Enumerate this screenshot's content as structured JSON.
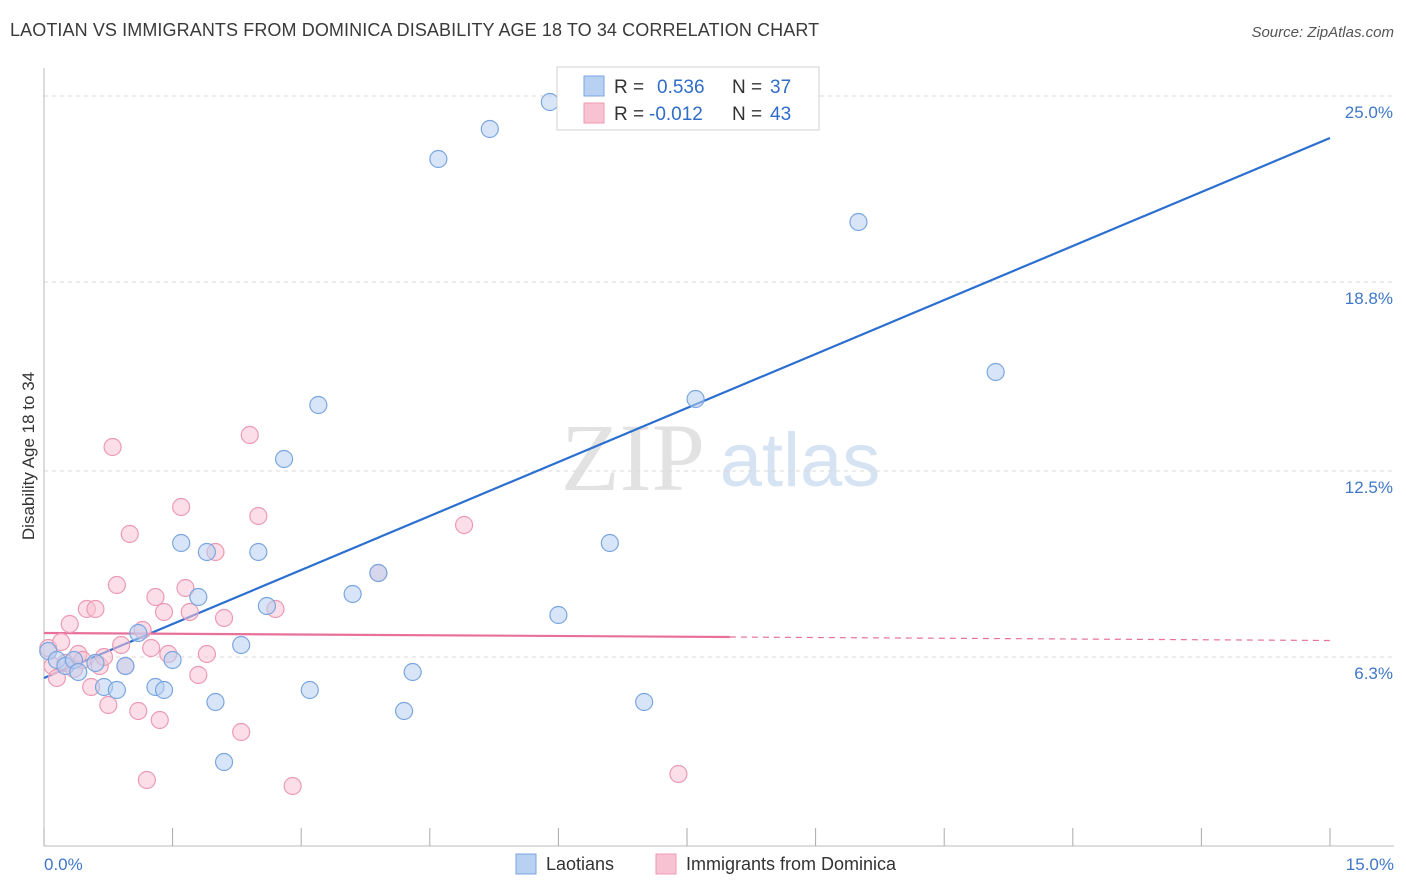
{
  "header": {
    "title": "LAOTIAN VS IMMIGRANTS FROM DOMINICA DISABILITY AGE 18 TO 34 CORRELATION CHART",
    "source": "Source: ZipAtlas.com"
  },
  "watermark": {
    "zip": "ZIP",
    "atlas": "atlas"
  },
  "legend": {
    "rows": [
      {
        "r_label": "R =",
        "r_value": "0.536",
        "n_label": "N =",
        "n_value": "37"
      },
      {
        "r_label": "R =",
        "r_value": "-0.012",
        "n_label": "N =",
        "n_value": "43"
      }
    ]
  },
  "bottom_legend": {
    "series1": "Laotians",
    "series2": "Immigrants from Dominica"
  },
  "colors": {
    "blue_fill": "#b8d0f2",
    "blue_stroke": "#7aa6e0",
    "blue_line": "#2b6fd0",
    "pink_fill": "#f7c3d3",
    "pink_stroke": "#ec9ab3",
    "pink_line": "#e8709a",
    "tick_text": "#3f77c7",
    "grid": "#d9d9d9"
  },
  "chart_data": {
    "type": "scatter",
    "title": "LAOTIAN VS IMMIGRANTS FROM DOMINICA DISABILITY AGE 18 TO 34 CORRELATION CHART",
    "xlabel": "",
    "ylabel": "Disability Age 18 to 34",
    "xlim": [
      0,
      15
    ],
    "ylim": [
      0,
      25.8
    ],
    "x_tick_labels": [
      "0.0%",
      "15.0%"
    ],
    "y_ticks": [
      6.3,
      12.5,
      18.8,
      25.0
    ],
    "y_tick_labels": [
      "6.3%",
      "12.5%",
      "18.8%",
      "25.0%"
    ],
    "grid": true,
    "series": [
      {
        "name": "Laotians",
        "r": 0.536,
        "n": 37,
        "points": [
          [
            0.05,
            6.5
          ],
          [
            0.15,
            6.2
          ],
          [
            0.25,
            6.0
          ],
          [
            0.35,
            6.2
          ],
          [
            0.4,
            5.8
          ],
          [
            0.6,
            6.1
          ],
          [
            0.7,
            5.3
          ],
          [
            0.85,
            5.2
          ],
          [
            0.95,
            6.0
          ],
          [
            1.1,
            7.1
          ],
          [
            1.3,
            5.3
          ],
          [
            1.4,
            5.2
          ],
          [
            1.5,
            6.2
          ],
          [
            1.6,
            10.1
          ],
          [
            1.8,
            8.3
          ],
          [
            1.9,
            9.8
          ],
          [
            2.0,
            4.8
          ],
          [
            2.1,
            2.8
          ],
          [
            2.3,
            6.7
          ],
          [
            2.5,
            9.8
          ],
          [
            2.6,
            8.0
          ],
          [
            2.8,
            12.9
          ],
          [
            3.1,
            5.2
          ],
          [
            3.2,
            14.7
          ],
          [
            3.6,
            8.4
          ],
          [
            3.9,
            9.1
          ],
          [
            4.2,
            4.5
          ],
          [
            4.3,
            5.8
          ],
          [
            4.6,
            22.9
          ],
          [
            5.2,
            23.9
          ],
          [
            5.9,
            24.8
          ],
          [
            6.0,
            7.7
          ],
          [
            6.6,
            10.1
          ],
          [
            7.0,
            4.8
          ],
          [
            7.6,
            14.9
          ],
          [
            9.5,
            20.8
          ],
          [
            11.1,
            15.8
          ]
        ],
        "trend": {
          "x": [
            0,
            15
          ],
          "y": [
            5.6,
            23.6
          ]
        }
      },
      {
        "name": "Immigrants from Dominica",
        "r": -0.012,
        "n": 43,
        "points": [
          [
            0.05,
            6.6
          ],
          [
            0.1,
            6.0
          ],
          [
            0.15,
            5.6
          ],
          [
            0.2,
            6.8
          ],
          [
            0.25,
            6.1
          ],
          [
            0.3,
            7.4
          ],
          [
            0.35,
            5.9
          ],
          [
            0.4,
            6.4
          ],
          [
            0.45,
            6.2
          ],
          [
            0.5,
            7.9
          ],
          [
            0.55,
            5.3
          ],
          [
            0.6,
            7.9
          ],
          [
            0.65,
            6.0
          ],
          [
            0.7,
            6.3
          ],
          [
            0.75,
            4.7
          ],
          [
            0.8,
            13.3
          ],
          [
            0.85,
            8.7
          ],
          [
            0.9,
            6.7
          ],
          [
            0.95,
            6.0
          ],
          [
            1.0,
            10.4
          ],
          [
            1.1,
            4.5
          ],
          [
            1.15,
            7.2
          ],
          [
            1.2,
            2.2
          ],
          [
            1.25,
            6.6
          ],
          [
            1.3,
            8.3
          ],
          [
            1.35,
            4.2
          ],
          [
            1.4,
            7.8
          ],
          [
            1.45,
            6.4
          ],
          [
            1.6,
            11.3
          ],
          [
            1.65,
            8.6
          ],
          [
            1.7,
            7.8
          ],
          [
            1.8,
            5.7
          ],
          [
            1.9,
            6.4
          ],
          [
            2.0,
            9.8
          ],
          [
            2.1,
            7.6
          ],
          [
            2.3,
            3.8
          ],
          [
            2.4,
            13.7
          ],
          [
            2.5,
            11.0
          ],
          [
            2.7,
            7.9
          ],
          [
            2.9,
            2.0
          ],
          [
            3.9,
            9.1
          ],
          [
            4.9,
            10.7
          ],
          [
            7.4,
            2.4
          ]
        ],
        "trend": {
          "x": [
            0,
            15
          ],
          "y": [
            7.1,
            6.85
          ],
          "solid_until": 8.0
        }
      }
    ]
  }
}
